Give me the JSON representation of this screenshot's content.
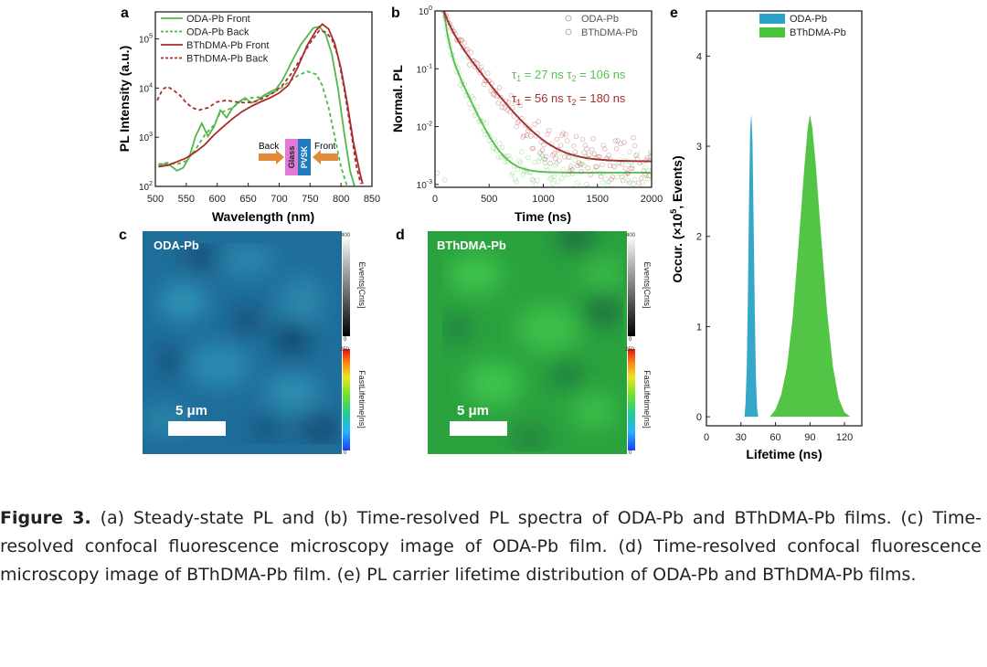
{
  "colors": {
    "oda_pl": "#4fb848",
    "bth_pl": "#a82c2c",
    "oda_tr": "#58c050",
    "bth_tr": "#a23030",
    "oda_map": "#1f6e9a",
    "bth_map": "#2aa23e",
    "hist_oda": "#2aa3c6",
    "hist_bth": "#4ac23c",
    "glass": "#e27ad6",
    "pvsk": "#1f7ac0",
    "arrow": "#e08a3c"
  },
  "panel_letters": {
    "a": "a",
    "b": "b",
    "c": "c",
    "d": "d",
    "e": "e"
  },
  "panel_c": {
    "label": "ODA-Pb",
    "scale": "5 μm",
    "events_bar": {
      "title": "Events[Cnts]",
      "max": "400",
      "min": "0"
    },
    "lifetime_bar": {
      "title": "FastLifetime[ns]",
      "max": "250",
      "min": "0"
    }
  },
  "panel_d": {
    "label": "BThDMA-Pb",
    "scale": "5 μm",
    "events_bar": {
      "title": "Events[Cnts]",
      "max": "400",
      "min": "0"
    },
    "lifetime_bar": {
      "title": "FastLifetime[ns]",
      "max": "250",
      "min": "0"
    }
  },
  "chart_data": [
    {
      "id": "a",
      "type": "line",
      "title": "",
      "xlabel": "Wavelength (nm)",
      "ylabel": "PL Intensity (a.u.)",
      "xlim": [
        500,
        850
      ],
      "ylim_log10": [
        2,
        5.55
      ],
      "y_scale": "log",
      "x_ticks": [
        500,
        550,
        600,
        650,
        700,
        750,
        800,
        850
      ],
      "y_ticks": [
        {
          "exp": 2,
          "label": "10",
          "sup": "2"
        },
        {
          "exp": 3,
          "label": "10",
          "sup": "3"
        },
        {
          "exp": 4,
          "label": "10",
          "sup": "4"
        },
        {
          "exp": 5,
          "label": "10",
          "sup": "5"
        }
      ],
      "legend_position": "top-left",
      "inset": {
        "back": "Back",
        "front": "Front",
        "glass": "Glass",
        "pvsk": "PVSK"
      },
      "series": [
        {
          "name": "ODA-Pb Front",
          "color_key": "oda_pl",
          "dash": false,
          "x": [
            505,
            515,
            525,
            535,
            545,
            555,
            565,
            575,
            585,
            595,
            605,
            615,
            625,
            635,
            645,
            655,
            665,
            675,
            685,
            695,
            705,
            715,
            725,
            735,
            745,
            755,
            765,
            775,
            785,
            795,
            805,
            815,
            822
          ],
          "log10y": [
            2.43,
            2.46,
            2.42,
            2.32,
            2.38,
            2.6,
            3.02,
            3.28,
            3.02,
            3.22,
            3.55,
            3.4,
            3.6,
            3.72,
            3.8,
            3.7,
            3.75,
            3.85,
            3.92,
            3.98,
            4.15,
            4.4,
            4.65,
            4.88,
            5.05,
            5.22,
            5.25,
            5.1,
            4.7,
            4.0,
            3.1,
            2.3,
            2.0
          ]
        },
        {
          "name": "ODA-Pb Back",
          "color_key": "oda_pl",
          "dash": true,
          "x": [
            505,
            520,
            535,
            550,
            565,
            580,
            595,
            605,
            615,
            625,
            640,
            655,
            670,
            685,
            700,
            715,
            730,
            745,
            760,
            770,
            780,
            790,
            800,
            810
          ],
          "log10y": [
            2.45,
            2.48,
            2.45,
            2.52,
            2.75,
            3.05,
            3.25,
            3.5,
            3.55,
            3.6,
            3.75,
            3.8,
            3.82,
            3.88,
            3.97,
            4.12,
            4.25,
            4.34,
            4.28,
            4.05,
            3.6,
            3.0,
            2.4,
            2.0
          ]
        },
        {
          "name": "BThDMA-Pb Front",
          "color_key": "bth_pl",
          "dash": false,
          "x": [
            505,
            520,
            535,
            550,
            565,
            580,
            595,
            610,
            625,
            640,
            655,
            670,
            685,
            700,
            715,
            730,
            745,
            760,
            770,
            780,
            790,
            800,
            810,
            820,
            830,
            835
          ],
          "log10y": [
            2.4,
            2.43,
            2.5,
            2.58,
            2.7,
            2.85,
            3.05,
            3.22,
            3.38,
            3.52,
            3.63,
            3.72,
            3.8,
            3.9,
            4.06,
            4.42,
            4.86,
            5.18,
            5.3,
            5.2,
            4.9,
            4.4,
            3.7,
            2.9,
            2.3,
            2.05
          ]
        },
        {
          "name": "BThDMA-Pb Back",
          "color_key": "bth_pl",
          "dash": true,
          "x": [
            503,
            512,
            520,
            530,
            540,
            550,
            560,
            570,
            585,
            600,
            615,
            630,
            645,
            660,
            675,
            690,
            705,
            720,
            735,
            750,
            765,
            775,
            785,
            795,
            805,
            815,
            825,
            832
          ],
          "log10y": [
            3.75,
            3.98,
            4.03,
            3.95,
            3.85,
            3.7,
            3.6,
            3.55,
            3.6,
            3.72,
            3.75,
            3.72,
            3.7,
            3.72,
            3.8,
            3.9,
            4.05,
            4.3,
            4.6,
            4.92,
            5.17,
            5.14,
            5.0,
            4.65,
            4.0,
            3.2,
            2.4,
            2.05
          ]
        }
      ]
    },
    {
      "id": "b",
      "type": "scatter",
      "title": "",
      "xlabel": "Time (ns)",
      "ylabel": "Normal. PL",
      "xlim": [
        0,
        2000
      ],
      "ylim_log10": [
        -3.05,
        0
      ],
      "y_scale": "log",
      "x_ticks": [
        0,
        500,
        1000,
        1500,
        2000
      ],
      "y_ticks": [
        {
          "exp": -3,
          "label": "10",
          "sup": "-3"
        },
        {
          "exp": -2,
          "label": "10",
          "sup": "-2"
        },
        {
          "exp": -1,
          "label": "10",
          "sup": "-1"
        },
        {
          "exp": 0,
          "label": "10",
          "sup": "0"
        }
      ],
      "legend_position": "top-right",
      "annotations": [
        {
          "color_key": "oda_tr",
          "t1": "27 ns",
          "t2": "106 ns"
        },
        {
          "color_key": "bth_tr",
          "t1": "56 ns",
          "t2": "180 ns"
        }
      ],
      "series": [
        {
          "name": "ODA-Pb",
          "color_key": "oda_tr",
          "fit": {
            "a1": 0.72,
            "tau1": 27,
            "a2": 0.28,
            "tau2": 106,
            "offset": 0.0016,
            "t0": 80
          }
        },
        {
          "name": "BThDMA-Pb",
          "color_key": "bth_tr",
          "fit": {
            "a1": 0.45,
            "tau1": 56,
            "a2": 0.55,
            "tau2": 180,
            "offset": 0.0025,
            "t0": 80
          }
        }
      ]
    },
    {
      "id": "e",
      "type": "area",
      "title": "",
      "xlabel": "Lifetime (ns)",
      "ylabel": "Occur. (×10",
      "ylabel_sup": "5",
      "ylabel_tail": ", Events)",
      "xlim": [
        0,
        135
      ],
      "ylim": [
        -0.1,
        4.5
      ],
      "x_ticks": [
        0,
        30,
        60,
        90,
        120
      ],
      "y_ticks": [
        0,
        1,
        2,
        3,
        4
      ],
      "legend_position": "top",
      "series": [
        {
          "name": "ODA-Pb",
          "color_key": "hist_oda",
          "x": [
            33,
            34,
            35,
            36,
            37,
            38,
            39,
            40,
            41,
            42,
            43,
            44,
            45
          ],
          "y": [
            0,
            0.15,
            0.55,
            1.3,
            2.4,
            3.2,
            3.36,
            3.05,
            2.2,
            1.2,
            0.45,
            0.1,
            0
          ]
        },
        {
          "name": "BThDMA-Pb",
          "color_key": "hist_bth",
          "x": [
            55,
            60,
            65,
            70,
            75,
            80,
            85,
            88,
            90,
            92,
            95,
            100,
            105,
            110,
            115,
            120,
            125
          ],
          "y": [
            0,
            0.08,
            0.25,
            0.55,
            1.1,
            1.9,
            2.75,
            3.2,
            3.35,
            3.2,
            2.8,
            1.95,
            1.15,
            0.55,
            0.2,
            0.05,
            0
          ]
        }
      ]
    }
  ],
  "caption": {
    "lead": "Figure 3.",
    "body": " (a) Steady-state PL and (b) Time-resolved PL spectra of ODA-Pb and BThDMA-Pb films. (c) Time-resolved confocal fluorescence microscopy image of ODA-Pb film. (d) Time-resolved confocal fluorescence microscopy image of BThDMA-Pb film. (e) PL carrier lifetime distribution of ODA-Pb and BThDMA-Pb films."
  }
}
